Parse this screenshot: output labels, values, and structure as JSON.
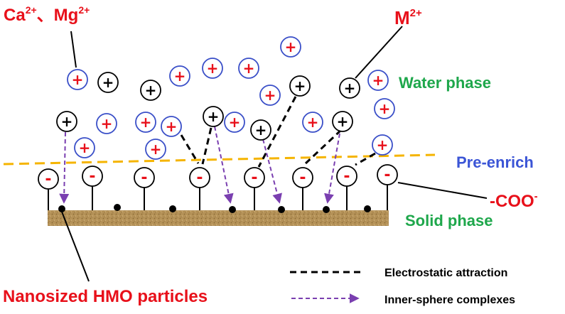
{
  "labels": {
    "ca_mg": {
      "text": "Ca",
      "sup1": "2+",
      "sep": "、",
      "text2": "Mg",
      "sup2": "2+"
    },
    "m2": {
      "text": "M",
      "sup": "2+"
    },
    "water_phase": "Water phase",
    "pre_enrich": "Pre-enrich",
    "coo": {
      "text": "-COO",
      "sup": "-"
    },
    "solid_phase": "Solid phase",
    "nanosized": "Nanosized HMO particles"
  },
  "legend": [
    {
      "style": "electrostatic",
      "label": "Electrostatic attraction"
    },
    {
      "style": "inner-sphere",
      "label": "Inner-sphere complexes"
    }
  ],
  "signs": {
    "plus": "+",
    "minus": "-"
  },
  "colors": {
    "red": "#e8101a",
    "blue_circle": "#3a4fc8",
    "green": "#1ea74b",
    "blue_text": "#3b55d6",
    "orange_dash": "#f5b400",
    "purple_arrow": "#7a3fb0",
    "soil": "#b08d55"
  }
}
